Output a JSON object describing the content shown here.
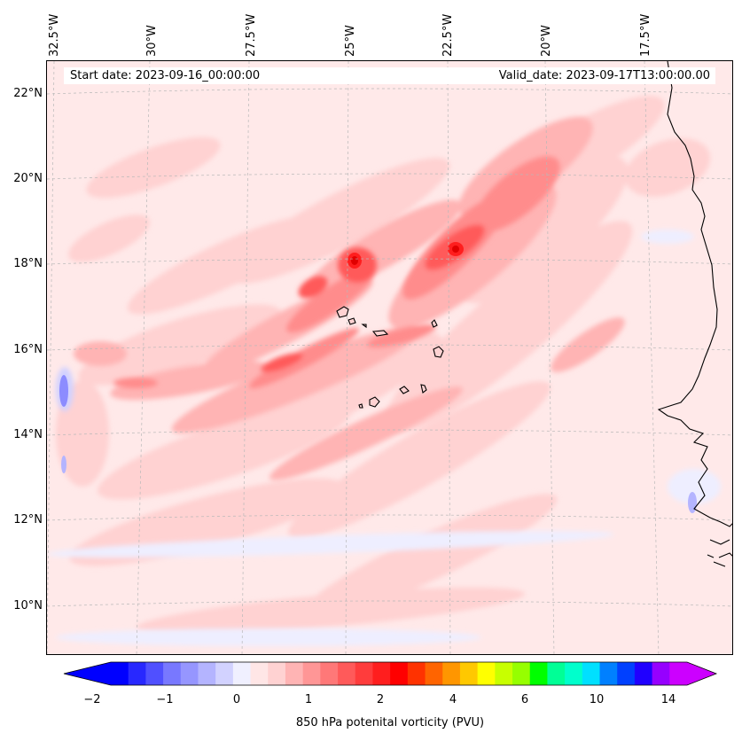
{
  "map": {
    "lon_labels": [
      "32.5°W",
      "30°W",
      "27.5°W",
      "25°W",
      "22.5°W",
      "20°W",
      "17.5°W"
    ],
    "lat_labels": [
      "22°N",
      "20°N",
      "18°N",
      "16°N",
      "14°N",
      "12°N",
      "10°N"
    ],
    "start_date": "Start date: 2023-09-16_00:00:00",
    "valid_date": "Valid_date: 2023-09-17T13:00:00.00",
    "field_colors": {
      "background": "#ffe9e9",
      "light_pink": "#ffd2d2",
      "pink": "#ffb4b4",
      "salmon": "#ff8c8c",
      "red": "#ff5a5a",
      "deep_red": "#ff1e1e",
      "pale_blue": "#eeeeff",
      "blue": "#8c8cff",
      "coast": "#000000"
    }
  },
  "colorbar": {
    "ticks": [
      "−2",
      "−1",
      "0",
      "1",
      "2",
      "4",
      "6",
      "10",
      "14"
    ],
    "label": "850 hPa potenital vorticity (PVU)",
    "colors": [
      "#0000ff",
      "#2828ff",
      "#5050ff",
      "#7878ff",
      "#9696ff",
      "#b4b4ff",
      "#d2d2ff",
      "#f0f0ff",
      "#ffe6e6",
      "#ffd2d2",
      "#ffb4b4",
      "#ff9696",
      "#ff7878",
      "#ff5a5a",
      "#ff3c3c",
      "#ff1e1e",
      "#ff0000",
      "#ff3200",
      "#ff6400",
      "#ff9600",
      "#ffc800",
      "#ffff00",
      "#c8ff00",
      "#96ff00",
      "#00ff00",
      "#00ff96",
      "#00ffcc",
      "#00e0ff",
      "#0080ff",
      "#0040ff",
      "#2000ff",
      "#9600ff",
      "#cc00ff"
    ],
    "extend_low": "#0000ff",
    "extend_high": "#cc00ff"
  }
}
